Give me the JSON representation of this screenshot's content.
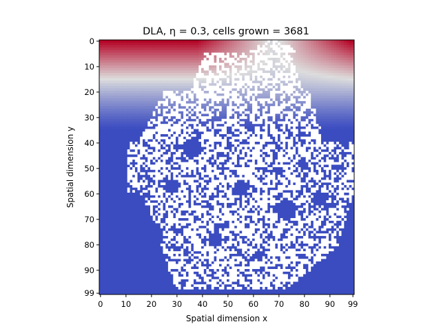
{
  "chart_data": {
    "type": "heatmap",
    "title": "DLA, η = 0.3, cells grown = 3681",
    "xlabel": "Spatial dimension x",
    "ylabel": "Spatial dimension y",
    "grid_size": 100,
    "xlim": [
      0,
      99
    ],
    "ylim": [
      99,
      0
    ],
    "xticks": [
      0,
      10,
      20,
      30,
      40,
      50,
      60,
      70,
      80,
      90,
      99
    ],
    "yticks": [
      0,
      10,
      20,
      30,
      40,
      50,
      60,
      70,
      80,
      90,
      99
    ],
    "colormap": "coolwarm",
    "colormap_colors": {
      "low": "#3b4cc0",
      "mid": "#dddddd",
      "high": "#b40426"
    },
    "cluster_color": "#ffffff",
    "field": "concentration, 1 at top row (y = 0) falling to 0 at depth",
    "cells_grown": 3681,
    "eta": 0.3,
    "cluster_extent": {
      "x_min": 10,
      "x_max": 99,
      "y_min": 0,
      "y_max": 97
    },
    "seed": {
      "x": 69,
      "y": 0
    }
  }
}
